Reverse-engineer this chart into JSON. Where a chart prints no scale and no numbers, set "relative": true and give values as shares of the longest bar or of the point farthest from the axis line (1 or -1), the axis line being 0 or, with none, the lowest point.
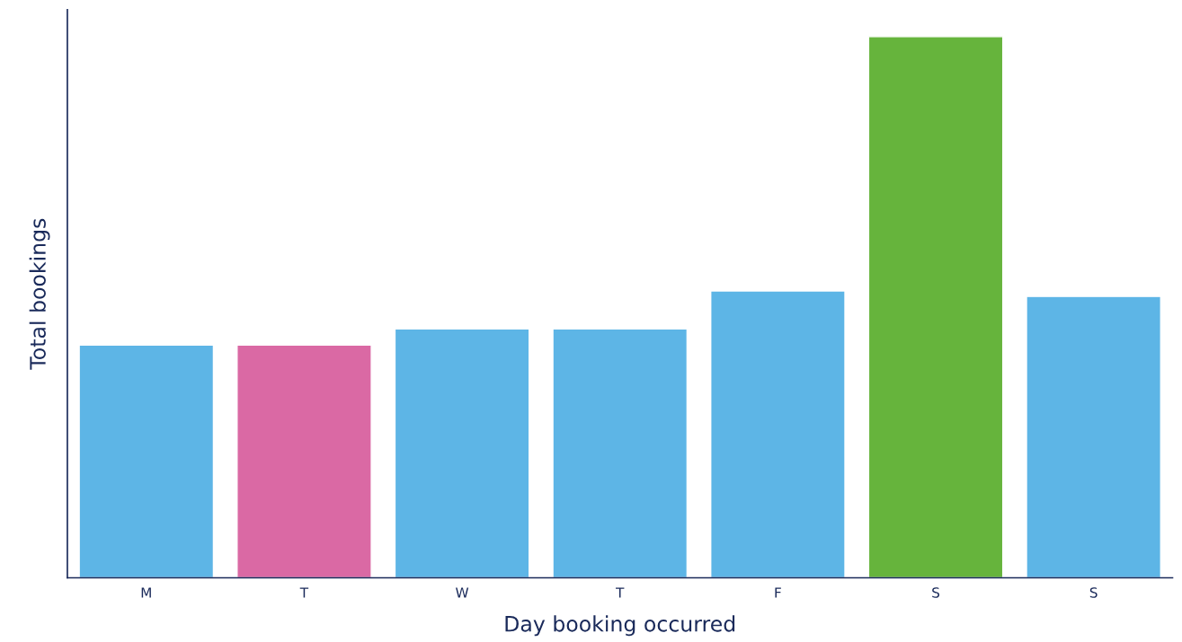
{
  "chart_data": {
    "type": "bar",
    "xlabel": "Day booking occurred",
    "ylabel": "Total bookings",
    "categories": [
      "M",
      "T",
      "W",
      "T",
      "F",
      "S",
      "S"
    ],
    "values": [
      0.43,
      0.43,
      0.46,
      0.46,
      0.53,
      1,
      0.52
    ],
    "colors": [
      "#5db5e6",
      "#da69a4",
      "#5db5e6",
      "#5db5e6",
      "#5db5e6",
      "#66b43c",
      "#5db5e6"
    ],
    "relative": true,
    "grid": false,
    "legend": false
  }
}
